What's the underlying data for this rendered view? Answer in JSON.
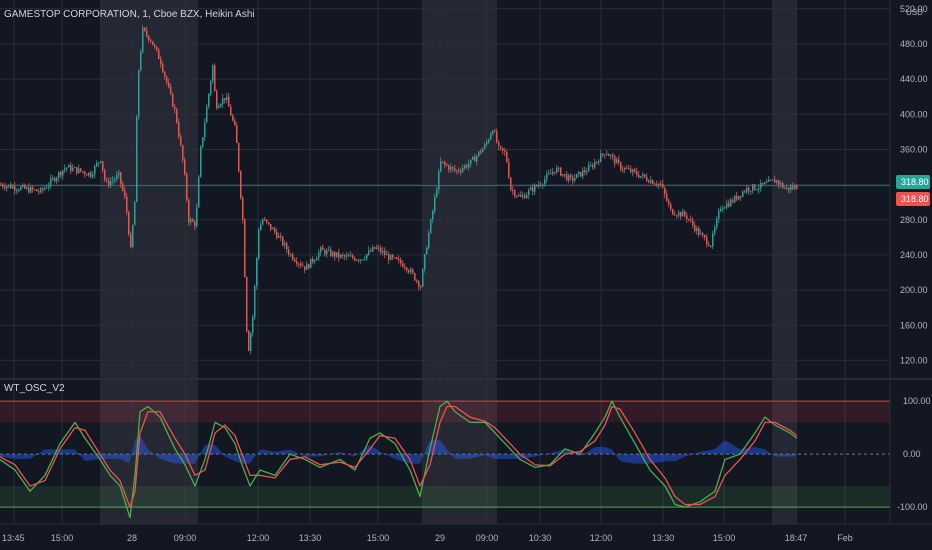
{
  "header": {
    "title": "GAMESTOP CORPORATION, 1, Cboe BZX, Heikin Ashi",
    "indicator": "WT_OSC_V2"
  },
  "price_axis": {
    "currency": "USD",
    "ticks": [
      "520.00",
      "480.00",
      "440.00",
      "400.00",
      "360.00",
      "320.00",
      "280.00",
      "240.00",
      "200.00",
      "160.00",
      "120.00"
    ],
    "last_price": "318.80",
    "prev_price": "318.80",
    "last_color": "#26a69a",
    "prev_color": "#ef5350"
  },
  "osc_axis": {
    "ticks": [
      "100.00",
      "0.00",
      "-100.00"
    ]
  },
  "time_axis": {
    "labels": [
      "13:45",
      "15:00",
      "28",
      "09:00",
      "12:00",
      "13:30",
      "15:00",
      "29",
      "09:00",
      "10:30",
      "12:00",
      "13:30",
      "15:00",
      "18:47",
      "Feb"
    ]
  },
  "colors": {
    "background": "#131722",
    "grid": "#2a2e39",
    "bull": "#26a69a",
    "bear": "#ef5350",
    "wt1": "#4caf50",
    "wt2": "#ef5350",
    "histogram": "#2962ff",
    "overbought": "#f23645",
    "oversold": "#4caf50",
    "session": "#787b86"
  },
  "chart_data": [
    {
      "type": "candlestick",
      "title": "GAMESTOP CORPORATION, 1, Cboe BZX, Heikin Ashi",
      "ylabel": "USD",
      "ylim": [
        100,
        530
      ],
      "x": [
        "13:45",
        "15:00",
        "28",
        "09:00",
        "12:00",
        "13:30",
        "15:00",
        "29",
        "09:00",
        "10:30",
        "12:00",
        "13:30",
        "15:00",
        "18:47"
      ],
      "path": [
        [
          0,
          320
        ],
        [
          40,
          312
        ],
        [
          65,
          340
        ],
        [
          90,
          332
        ],
        [
          100,
          350
        ],
        [
          105,
          320
        ],
        [
          118,
          330
        ],
        [
          125,
          300
        ],
        [
          130,
          245
        ],
        [
          134,
          300
        ],
        [
          137,
          440
        ],
        [
          142,
          495
        ],
        [
          150,
          485
        ],
        [
          160,
          460
        ],
        [
          175,
          400
        ],
        [
          183,
          340
        ],
        [
          188,
          280
        ],
        [
          195,
          275
        ],
        [
          200,
          360
        ],
        [
          205,
          400
        ],
        [
          212,
          455
        ],
        [
          215,
          410
        ],
        [
          225,
          420
        ],
        [
          235,
          380
        ],
        [
          242,
          280
        ],
        [
          247,
          125
        ],
        [
          252,
          170
        ],
        [
          258,
          270
        ],
        [
          262,
          280
        ],
        [
          275,
          265
        ],
        [
          290,
          240
        ],
        [
          305,
          225
        ],
        [
          320,
          245
        ],
        [
          340,
          238
        ],
        [
          360,
          236
        ],
        [
          375,
          248
        ],
        [
          390,
          236
        ],
        [
          405,
          228
        ],
        [
          420,
          205
        ],
        [
          425,
          245
        ],
        [
          432,
          290
        ],
        [
          440,
          345
        ],
        [
          455,
          335
        ],
        [
          470,
          345
        ],
        [
          485,
          365
        ],
        [
          492,
          385
        ],
        [
          498,
          360
        ],
        [
          505,
          355
        ],
        [
          510,
          315
        ],
        [
          520,
          305
        ],
        [
          540,
          322
        ],
        [
          555,
          338
        ],
        [
          570,
          325
        ],
        [
          590,
          340
        ],
        [
          605,
          358
        ],
        [
          620,
          340
        ],
        [
          640,
          330
        ],
        [
          660,
          320
        ],
        [
          670,
          290
        ],
        [
          685,
          285
        ],
        [
          700,
          262
        ],
        [
          710,
          252
        ],
        [
          720,
          295
        ],
        [
          730,
          300
        ],
        [
          745,
          315
        ],
        [
          760,
          318
        ],
        [
          775,
          325
        ],
        [
          785,
          315
        ],
        [
          797,
          318
        ]
      ],
      "sessions": [
        [
          100,
          198
        ],
        [
          422,
          497
        ],
        [
          772,
          797
        ]
      ],
      "last": 318.8
    },
    {
      "type": "line",
      "title": "WT_OSC_V2",
      "ylim": [
        -100,
        100
      ],
      "levels": [
        100,
        60,
        0,
        -60,
        -100
      ],
      "series": [
        {
          "values": [
            [
              0,
              -10
            ],
            [
              15,
              -30
            ],
            [
              30,
              -70
            ],
            [
              45,
              -40
            ],
            [
              60,
              20
            ],
            [
              75,
              60
            ],
            [
              85,
              30
            ],
            [
              100,
              -10
            ],
            [
              110,
              -40
            ],
            [
              120,
              -60
            ],
            [
              130,
              -120
            ],
            [
              135,
              -40
            ],
            [
              140,
              80
            ],
            [
              148,
              90
            ],
            [
              160,
              70
            ],
            [
              175,
              10
            ],
            [
              185,
              -20
            ],
            [
              195,
              -60
            ],
            [
              205,
              -10
            ],
            [
              215,
              60
            ],
            [
              225,
              50
            ],
            [
              235,
              20
            ],
            [
              242,
              -20
            ],
            [
              250,
              -60
            ],
            [
              260,
              -30
            ],
            [
              275,
              -40
            ],
            [
              290,
              0
            ],
            [
              305,
              -10
            ],
            [
              320,
              -25
            ],
            [
              340,
              -10
            ],
            [
              355,
              -30
            ],
            [
              370,
              30
            ],
            [
              380,
              40
            ],
            [
              395,
              20
            ],
            [
              410,
              -30
            ],
            [
              420,
              -80
            ],
            [
              430,
              10
            ],
            [
              440,
              90
            ],
            [
              447,
              100
            ],
            [
              455,
              80
            ],
            [
              470,
              60
            ],
            [
              485,
              60
            ],
            [
              495,
              40
            ],
            [
              505,
              20
            ],
            [
              520,
              -10
            ],
            [
              535,
              -25
            ],
            [
              550,
              -20
            ],
            [
              565,
              10
            ],
            [
              580,
              0
            ],
            [
              595,
              40
            ],
            [
              605,
              70
            ],
            [
              612,
              100
            ],
            [
              620,
              70
            ],
            [
              635,
              20
            ],
            [
              650,
              -30
            ],
            [
              665,
              -60
            ],
            [
              675,
              -95
            ],
            [
              685,
              -100
            ],
            [
              700,
              -90
            ],
            [
              715,
              -70
            ],
            [
              725,
              -10
            ],
            [
              740,
              0
            ],
            [
              755,
              40
            ],
            [
              765,
              70
            ],
            [
              775,
              55
            ],
            [
              790,
              40
            ],
            [
              797,
              30
            ]
          ]
        },
        {
          "values": [
            [
              0,
              -5
            ],
            [
              15,
              -20
            ],
            [
              30,
              -60
            ],
            [
              45,
              -50
            ],
            [
              60,
              10
            ],
            [
              75,
              50
            ],
            [
              85,
              45
            ],
            [
              100,
              0
            ],
            [
              110,
              -30
            ],
            [
              120,
              -50
            ],
            [
              130,
              -100
            ],
            [
              135,
              -70
            ],
            [
              140,
              40
            ],
            [
              148,
              80
            ],
            [
              160,
              80
            ],
            [
              175,
              30
            ],
            [
              185,
              0
            ],
            [
              195,
              -40
            ],
            [
              205,
              -30
            ],
            [
              215,
              40
            ],
            [
              225,
              55
            ],
            [
              235,
              35
            ],
            [
              242,
              0
            ],
            [
              250,
              -40
            ],
            [
              260,
              -40
            ],
            [
              275,
              -45
            ],
            [
              290,
              -10
            ],
            [
              305,
              -5
            ],
            [
              320,
              -20
            ],
            [
              340,
              -15
            ],
            [
              355,
              -25
            ],
            [
              370,
              10
            ],
            [
              380,
              35
            ],
            [
              395,
              30
            ],
            [
              410,
              -10
            ],
            [
              420,
              -60
            ],
            [
              430,
              -20
            ],
            [
              440,
              60
            ],
            [
              447,
              90
            ],
            [
              455,
              90
            ],
            [
              470,
              70
            ],
            [
              485,
              62
            ],
            [
              495,
              50
            ],
            [
              505,
              30
            ],
            [
              520,
              0
            ],
            [
              535,
              -20
            ],
            [
              550,
              -22
            ],
            [
              565,
              0
            ],
            [
              580,
              5
            ],
            [
              595,
              25
            ],
            [
              605,
              55
            ],
            [
              612,
              90
            ],
            [
              620,
              85
            ],
            [
              635,
              40
            ],
            [
              650,
              -10
            ],
            [
              665,
              -45
            ],
            [
              675,
              -80
            ],
            [
              685,
              -95
            ],
            [
              700,
              -95
            ],
            [
              715,
              -80
            ],
            [
              725,
              -40
            ],
            [
              740,
              -10
            ],
            [
              755,
              25
            ],
            [
              765,
              60
            ],
            [
              775,
              60
            ],
            [
              790,
              45
            ],
            [
              797,
              35
            ]
          ]
        }
      ]
    }
  ]
}
